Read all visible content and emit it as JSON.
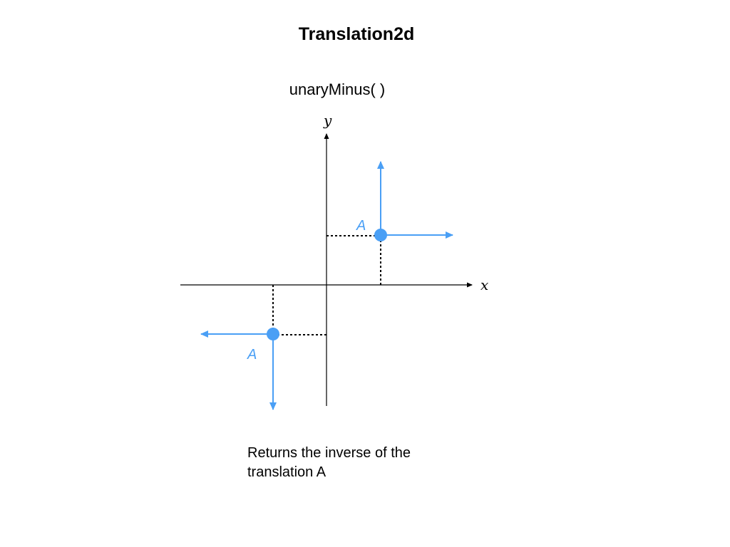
{
  "slide": {
    "title": "Translation2d",
    "subtitle": "unaryMinus( )",
    "caption_line1": "Returns the inverse of the",
    "caption_line2": "translation A"
  },
  "diagram": {
    "x_axis_label": "x",
    "y_axis_label": "y",
    "point_label_original": "A",
    "point_label_inverse": "A",
    "accent_color": "#4a9ff5",
    "axis_color": "#000000"
  }
}
